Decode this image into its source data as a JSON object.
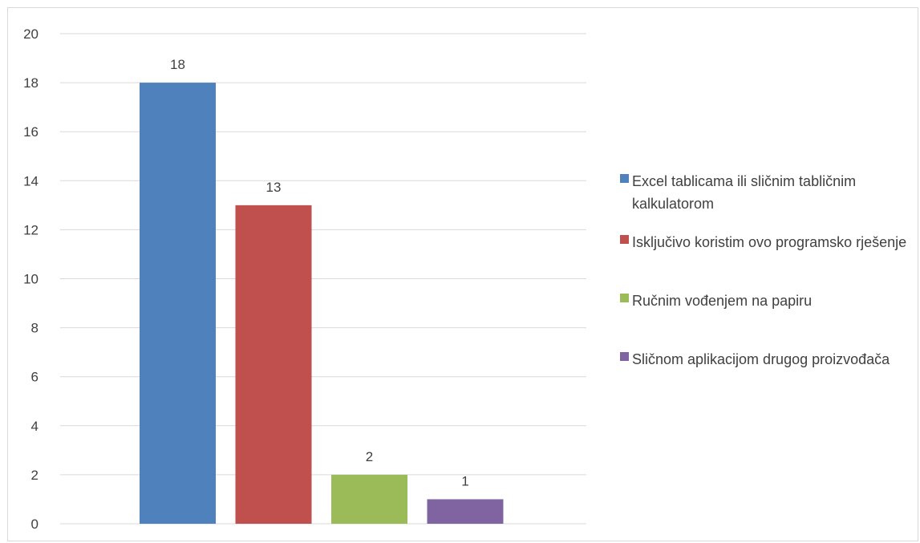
{
  "chart_data": {
    "type": "bar",
    "title": "",
    "xlabel": "",
    "ylabel": "",
    "ylim": [
      0,
      20
    ],
    "yticks": [
      0,
      2,
      4,
      6,
      8,
      10,
      12,
      14,
      16,
      18,
      20
    ],
    "grid": true,
    "legend_position": "right",
    "categories": [
      "Excel tablicama ili sličnim tabličnim kalkulatorom",
      "Isključivo koristim ovo programsko rješenje",
      "Ručnim vođenjem na papiru",
      "Sličnom aplikacijom drugog proizvođača"
    ],
    "values": [
      18,
      13,
      2,
      1
    ],
    "data_labels": [
      "18",
      "13",
      "2",
      "1"
    ],
    "colors": [
      "#4f81bd",
      "#c0504d",
      "#9bbb59",
      "#8064a2"
    ]
  }
}
